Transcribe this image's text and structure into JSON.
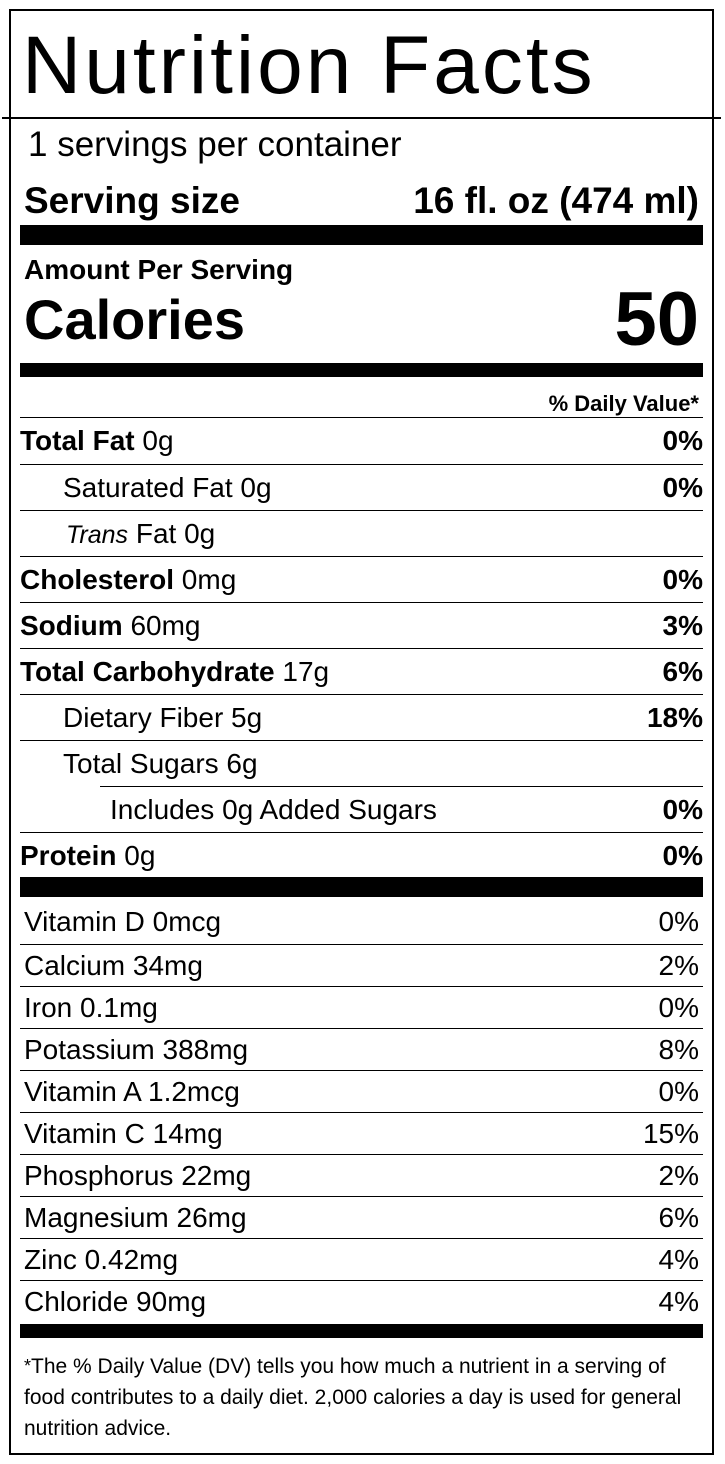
{
  "header": {
    "title": "Nutrition Facts",
    "servings_per_container": "1 servings per container",
    "serving_size_label": "Serving size",
    "serving_size_value": "16 fl. oz (474 ml)"
  },
  "calories": {
    "amount_per_serving": "Amount Per Serving",
    "label": "Calories",
    "value": "50"
  },
  "daily_value_header": "% Daily Value*",
  "nutrients": [
    {
      "name": "Total Fat",
      "amount": " 0g",
      "dv": "0%"
    },
    {
      "name": "Saturated Fat",
      "amount": " 0g",
      "dv": "0%"
    },
    {
      "name": "Trans",
      "amount": " Fat 0g",
      "dv": ""
    },
    {
      "name": "Cholesterol",
      "amount": " 0mg",
      "dv": "0%"
    },
    {
      "name": "Sodium",
      "amount": " 60mg",
      "dv": "3%"
    },
    {
      "name": "Total Carbohydrate",
      "amount": " 17g",
      "dv": "6%"
    },
    {
      "name": "Dietary Fiber",
      "amount": " 5g",
      "dv": "18%"
    },
    {
      "name": "Total Sugars",
      "amount": " 6g",
      "dv": ""
    },
    {
      "name": "Includes 0g Added Sugars",
      "amount": "",
      "dv": "0%"
    },
    {
      "name": "Protein",
      "amount": " 0g",
      "dv": "0%"
    }
  ],
  "vitamins": [
    {
      "label": "Vitamin D 0mcg",
      "dv": "0%"
    },
    {
      "label": "Calcium 34mg",
      "dv": "2%"
    },
    {
      "label": "Iron 0.1mg",
      "dv": "0%"
    },
    {
      "label": "Potassium 388mg",
      "dv": "8%"
    },
    {
      "label": "Vitamin A 1.2mcg",
      "dv": "0%"
    },
    {
      "label": "Vitamin C 14mg",
      "dv": "15%"
    },
    {
      "label": "Phosphorus 22mg",
      "dv": "2%"
    },
    {
      "label": "Magnesium 26mg",
      "dv": "6%"
    },
    {
      "label": "Zinc 0.42mg",
      "dv": "4%"
    },
    {
      "label": "Chloride 90mg",
      "dv": "4%"
    }
  ],
  "footnote": {
    "star": "*",
    "text": "The % Daily Value (DV) tells you how much a nutrient in a serving of food contributes to a daily diet. 2,000 calories a day is used for general nutrition advice."
  }
}
